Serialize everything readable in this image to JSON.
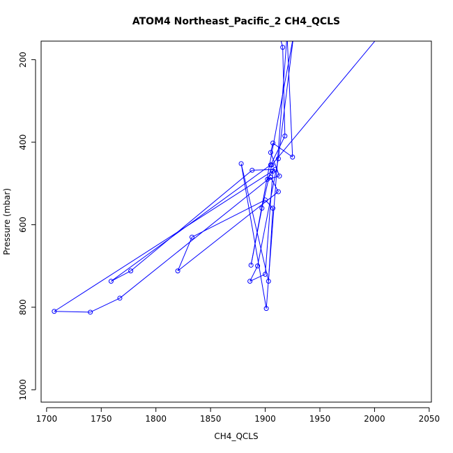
{
  "chart_data": {
    "type": "line",
    "title": "ATOM4 Northeast_Pacific_2 CH4_QCLS",
    "xlabel": "CH4_QCLS",
    "ylabel": "Pressure (mbar)",
    "xlim": [
      1695,
      2052
    ],
    "ylim": [
      1030,
      155
    ],
    "y_reversed": true,
    "xticks": [
      1700,
      1750,
      1800,
      1850,
      1900,
      1950,
      2000,
      2050
    ],
    "yticks": [
      200,
      400,
      600,
      800,
      1000
    ],
    "grid": false,
    "marker": "open-circle",
    "colors": {
      "series": "#0000ff",
      "axis": "#000000"
    },
    "series": [
      {
        "points": [
          [
            1913,
            140
          ],
          [
            1916,
            170
          ],
          [
            1918,
            385
          ],
          [
            1905,
            455
          ],
          [
            1759,
            737
          ],
          [
            1777,
            712
          ],
          [
            1888,
            468
          ],
          [
            1909,
            466
          ],
          [
            1707,
            810
          ],
          [
            1740,
            812
          ],
          [
            1767,
            778
          ],
          [
            1905,
            485
          ],
          [
            1912,
            520
          ],
          [
            1820,
            712
          ],
          [
            1833,
            630
          ],
          [
            1900,
            540
          ],
          [
            1907,
            560
          ],
          [
            1903,
            737
          ],
          [
            1878,
            452
          ],
          [
            1901,
            803
          ],
          [
            1920,
            140
          ],
          [
            1925,
            436
          ],
          [
            1907,
            402
          ],
          [
            1905,
            425
          ],
          [
            1913,
            482
          ],
          [
            1902,
            490
          ],
          [
            1907,
            470
          ],
          [
            1900,
            720
          ],
          [
            1886,
            737
          ],
          [
            1893,
            700
          ],
          [
            1912,
            440
          ],
          [
            1926,
            140
          ],
          [
            1887,
            698
          ],
          [
            1897,
            560
          ],
          [
            1906,
            455
          ],
          [
            2005,
            140
          ]
        ]
      }
    ]
  }
}
